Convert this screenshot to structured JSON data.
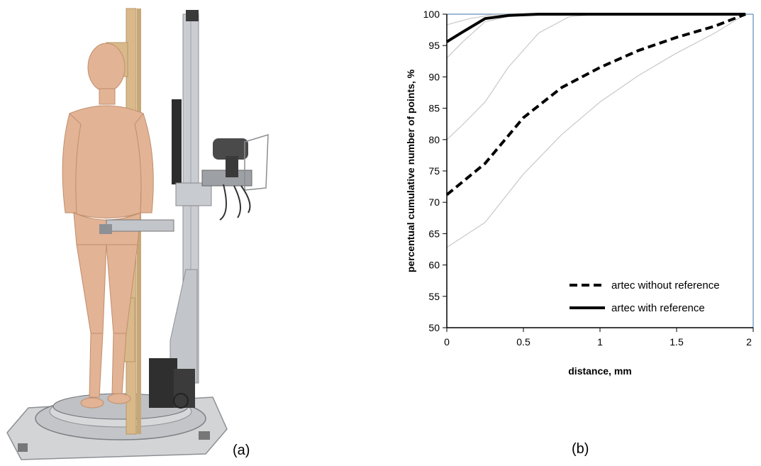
{
  "figure": {
    "panel_a_label": "(a)",
    "panel_b_label": "(b)"
  },
  "photo": {
    "subject": "mannequin-on-rotating-platform-with-3d-scanner-rig",
    "colors": {
      "skin": "#e2b394",
      "wood": "#d9b98a",
      "metal": "#b9bcc0",
      "base": "#c7c7c7"
    }
  },
  "chart_data": {
    "type": "line",
    "title": "",
    "xlabel": "distance, mm",
    "ylabel": "percentual cumulative number of points, %",
    "xlim": [
      0,
      2
    ],
    "ylim": [
      50,
      100
    ],
    "xticks": [
      "0",
      "0.5",
      "1",
      "1.5",
      "2"
    ],
    "yticks": [
      "50",
      "55",
      "60",
      "65",
      "70",
      "75",
      "80",
      "85",
      "90",
      "95",
      "100"
    ],
    "grid": false,
    "legend": {
      "position": "bottom-right",
      "entries": [
        "artec without reference",
        "artec with reference"
      ]
    },
    "series": [
      {
        "name": "artec without reference",
        "style": "dashed-bold",
        "color": "#000000",
        "x": [
          0,
          0.25,
          0.5,
          0.75,
          1.0,
          1.25,
          1.5,
          1.75,
          1.95
        ],
        "y": [
          71.2,
          76.2,
          83.5,
          88.3,
          91.5,
          94.2,
          96.3,
          98.1,
          100
        ]
      },
      {
        "name": "artec with reference",
        "style": "solid-bold",
        "color": "#000000",
        "x": [
          0,
          0.1,
          0.25,
          0.4,
          0.6,
          1.0,
          1.5,
          1.95
        ],
        "y": [
          95.6,
          97.1,
          99.3,
          99.8,
          100,
          100,
          100,
          100
        ]
      },
      {
        "style": "thin-gray",
        "color": "#c8c8c8",
        "x": [
          0,
          0.25,
          0.5,
          0.75,
          1.0,
          1.25,
          1.5,
          1.75,
          1.95
        ],
        "y": [
          62.8,
          66.8,
          74.5,
          80.8,
          86.0,
          90.2,
          93.8,
          97.0,
          100
        ]
      },
      {
        "style": "thin-gray",
        "color": "#c8c8c8",
        "x": [
          0,
          0.1,
          0.25,
          0.4,
          0.6,
          0.8,
          1.0,
          1.5,
          1.95
        ],
        "y": [
          80.0,
          82.3,
          86.0,
          91.5,
          97.0,
          99.6,
          100,
          100,
          100
        ]
      },
      {
        "style": "thin-gray",
        "color": "#c8c8c8",
        "x": [
          0,
          0.1,
          0.25,
          0.4,
          0.6,
          1.0,
          1.95
        ],
        "y": [
          93.0,
          95.5,
          98.8,
          99.6,
          100,
          100,
          100
        ]
      },
      {
        "style": "thin-gray",
        "color": "#c8c8c8",
        "x": [
          0,
          0.15,
          0.3,
          0.5,
          1.0,
          1.95
        ],
        "y": [
          98.3,
          99.3,
          99.9,
          100,
          100,
          100
        ]
      }
    ]
  }
}
